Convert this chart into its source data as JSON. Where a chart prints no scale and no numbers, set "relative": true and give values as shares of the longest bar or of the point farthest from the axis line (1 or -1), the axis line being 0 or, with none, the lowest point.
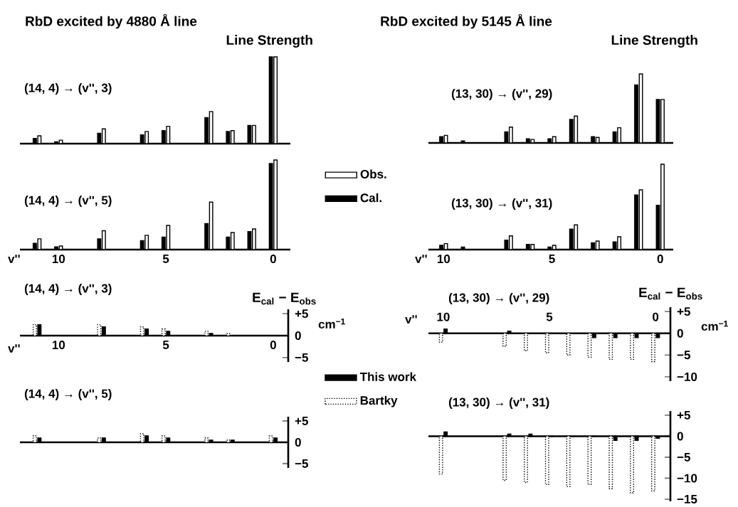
{
  "chart_data": [
    {
      "type": "bar",
      "relative": true,
      "title": "RbD excited by 4880 Å line",
      "ylabel": "Line Strength",
      "annotations": [
        "(14, 4) → (v'', 3)"
      ],
      "x": [
        11,
        10,
        8,
        6,
        5,
        3,
        2,
        1,
        0
      ],
      "xlim": [
        11.8,
        -0.8
      ],
      "xticks": [
        10,
        5,
        0
      ],
      "tick_labels": false,
      "series": [
        {
          "color": "#000000",
          "values": [
            0.06,
            0.02,
            0.12,
            0.1,
            0.15,
            0.3,
            0.14,
            0.21,
            1
          ]
        },
        {
          "color": "#ffffff",
          "values": [
            0.09,
            0.04,
            0.17,
            0.14,
            0.2,
            0.37,
            0.15,
            0.21,
            1
          ]
        }
      ]
    },
    {
      "type": "bar",
      "relative": true,
      "title": "RbD excited by 5145 Å line",
      "ylabel": "Line Strength",
      "annotations": [
        "(13, 30) → (v'', 29)"
      ],
      "x": [
        10,
        9,
        7,
        6,
        5,
        4,
        3,
        2,
        1,
        0
      ],
      "xlim": [
        10.7,
        -0.6
      ],
      "xticks": [
        10,
        5,
        0
      ],
      "tick_labels": false,
      "series": [
        {
          "color": "#000000",
          "values": [
            0.09,
            0.03,
            0.16,
            0.06,
            0.06,
            0.34,
            0.09,
            0.16,
            0.84,
            0.63
          ]
        },
        {
          "color": "#ffffff",
          "values": [
            0.11,
            null,
            0.23,
            0.05,
            0.09,
            0.39,
            0.08,
            0.22,
            1,
            0.63
          ]
        }
      ]
    },
    {
      "type": "bar",
      "relative": true,
      "xlabel": "v''",
      "annotations": [
        "(14, 4) → (v'', 5)"
      ],
      "x": [
        11,
        10,
        8,
        6,
        5,
        3,
        2,
        1,
        0
      ],
      "xlim": [
        11.8,
        -0.8
      ],
      "xticks": [
        10,
        5,
        0
      ],
      "tick_labels": "x",
      "legend": "right",
      "series": [
        {
          "name": "Cal.",
          "color": "#000000",
          "values": [
            0.07,
            0.03,
            0.12,
            0.1,
            0.14,
            0.29,
            0.14,
            0.2,
            0.96
          ]
        },
        {
          "name": "Obs.",
          "color": "#ffffff",
          "values": [
            0.12,
            0.04,
            0.21,
            0.16,
            0.27,
            0.53,
            0.19,
            0.23,
            1
          ]
        }
      ]
    },
    {
      "type": "bar",
      "relative": true,
      "xlabel": "v''",
      "annotations": [
        "(13, 30) → (v'', 31)"
      ],
      "x": [
        10,
        9,
        7,
        6,
        5,
        4,
        3,
        2,
        1,
        0
      ],
      "xlim": [
        10.7,
        -0.6
      ],
      "xticks": [
        10,
        5,
        0
      ],
      "tick_labels": "x",
      "series": [
        {
          "color": "#000000",
          "values": [
            0.05,
            0.03,
            0.11,
            0.06,
            0.03,
            0.24,
            0.08,
            0.09,
            0.64,
            0.52
          ]
        },
        {
          "color": "#ffffff",
          "values": [
            0.07,
            null,
            0.16,
            0.06,
            0.05,
            0.29,
            0.1,
            0.15,
            0.7,
            1
          ]
        }
      ]
    },
    {
      "type": "bar",
      "xlabel": "v''",
      "ylabel": "E$_{cal}$ − E$_{obs}$",
      "annotations": [
        "(14, 4) → (v'', 3)",
        "cm$^{−1}$"
      ],
      "x": [
        11,
        8,
        6,
        5,
        3,
        2
      ],
      "xlim": [
        11.8,
        -0.7
      ],
      "xticks": [
        10,
        5,
        0
      ],
      "ylim": [
        -6,
        6
      ],
      "yticks": [
        {
          "value": 5,
          "label": "+5"
        },
        0,
        {
          "value": -5,
          "label": "−5"
        }
      ],
      "series": [
        {
          "color": "#ffffff",
          "line_style": "dotted",
          "values": [
            2.5,
            2.5,
            2,
            1.5,
            1,
            0.5
          ]
        },
        {
          "color": "#000000",
          "values": [
            2.5,
            2,
            1.5,
            1,
            0.5,
            0
          ]
        }
      ]
    },
    {
      "type": "bar",
      "xlabel": "v''",
      "ylabel": "E$_{cal}$ − E$_{obs}$",
      "annotations": [
        "(13, 30) → (v'', 29)",
        "cm$^{−1}$"
      ],
      "x": [
        10,
        7,
        6,
        5,
        4,
        3,
        2,
        1,
        0
      ],
      "xlim": [
        10.7,
        -0.7
      ],
      "xticks": [
        10,
        5,
        0
      ],
      "ylim": [
        -11,
        6
      ],
      "yticks": [
        {
          "value": 5,
          "label": "+5"
        },
        0,
        {
          "value": -5,
          "label": "−5"
        },
        {
          "value": -10,
          "label": "−10"
        }
      ],
      "series": [
        {
          "color": "#ffffff",
          "line_style": "dotted",
          "values": [
            -2,
            -3,
            -4,
            -4.5,
            -5,
            -5.5,
            -6,
            -6,
            -6.5
          ]
        },
        {
          "color": "#000000",
          "values": [
            1,
            0.5,
            0,
            0,
            0,
            -1,
            -1,
            -1,
            -1
          ]
        }
      ]
    },
    {
      "type": "bar",
      "annotations": [
        "(14, 4) → (v'', 5)"
      ],
      "x": [
        11,
        8,
        6,
        5,
        3,
        2,
        0
      ],
      "xlim": [
        11.8,
        -0.7
      ],
      "xticks": [
        10,
        5,
        0
      ],
      "ylim": [
        -6,
        6
      ],
      "yticks": [
        {
          "value": 5,
          "label": "+5"
        },
        0,
        {
          "value": -5,
          "label": "−5"
        }
      ],
      "tick_labels": "y",
      "legend": "right",
      "series": [
        {
          "name": "Bartky",
          "color": "#ffffff",
          "line_style": "dotted",
          "values": [
            1.5,
            1,
            2,
            1.5,
            1,
            0.5,
            1.5
          ]
        },
        {
          "name": "This work",
          "color": "#000000",
          "values": [
            1,
            1,
            1.5,
            1,
            0.5,
            0.5,
            1
          ]
        }
      ]
    },
    {
      "type": "bar",
      "annotations": [
        "(13, 30) → (v'', 31)"
      ],
      "x": [
        10,
        7,
        6,
        5,
        4,
        3,
        2,
        1,
        0
      ],
      "xlim": [
        10.7,
        -0.7
      ],
      "xticks": [
        10,
        5,
        0
      ],
      "ylim": [
        -15.5,
        6
      ],
      "yticks": [
        {
          "value": 5,
          "label": "+5"
        },
        0,
        {
          "value": -5,
          "label": "−5"
        },
        {
          "value": -10,
          "label": "−10"
        },
        {
          "value": -15,
          "label": "−15"
        }
      ],
      "tick_labels": "y",
      "series": [
        {
          "color": "#ffffff",
          "line_style": "dotted",
          "values": [
            -9,
            -10.5,
            -11,
            -11.5,
            -12,
            -11.5,
            -12.5,
            -13.5,
            -13
          ]
        },
        {
          "color": "#000000",
          "values": [
            1,
            0.5,
            0.5,
            0,
            0,
            0,
            -1,
            -1,
            -0.5
          ]
        }
      ]
    }
  ]
}
